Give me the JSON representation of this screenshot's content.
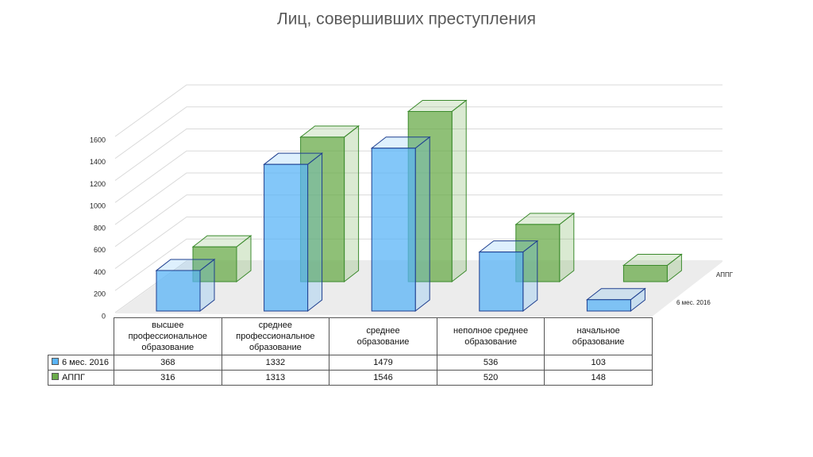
{
  "chart_data": {
    "type": "bar3d",
    "title": "Лиц, совершивших преступления",
    "categories": [
      "высшее профессиональное образование",
      "среднее профессиональное образование",
      "среднее образование",
      "неполное среднее образование",
      "начальное образование"
    ],
    "series": [
      {
        "name": "6 мес. 2016",
        "color": "#5ab4f7",
        "values": [
          368,
          1332,
          1479,
          536,
          103
        ]
      },
      {
        "name": "АППГ",
        "color": "#6aab4a",
        "values": [
          316,
          1313,
          1546,
          520,
          148
        ]
      }
    ],
    "ylim": [
      0,
      1600
    ],
    "yticks": [
      0,
      200,
      400,
      600,
      800,
      1000,
      1200,
      1400,
      1600
    ],
    "grid": true
  }
}
